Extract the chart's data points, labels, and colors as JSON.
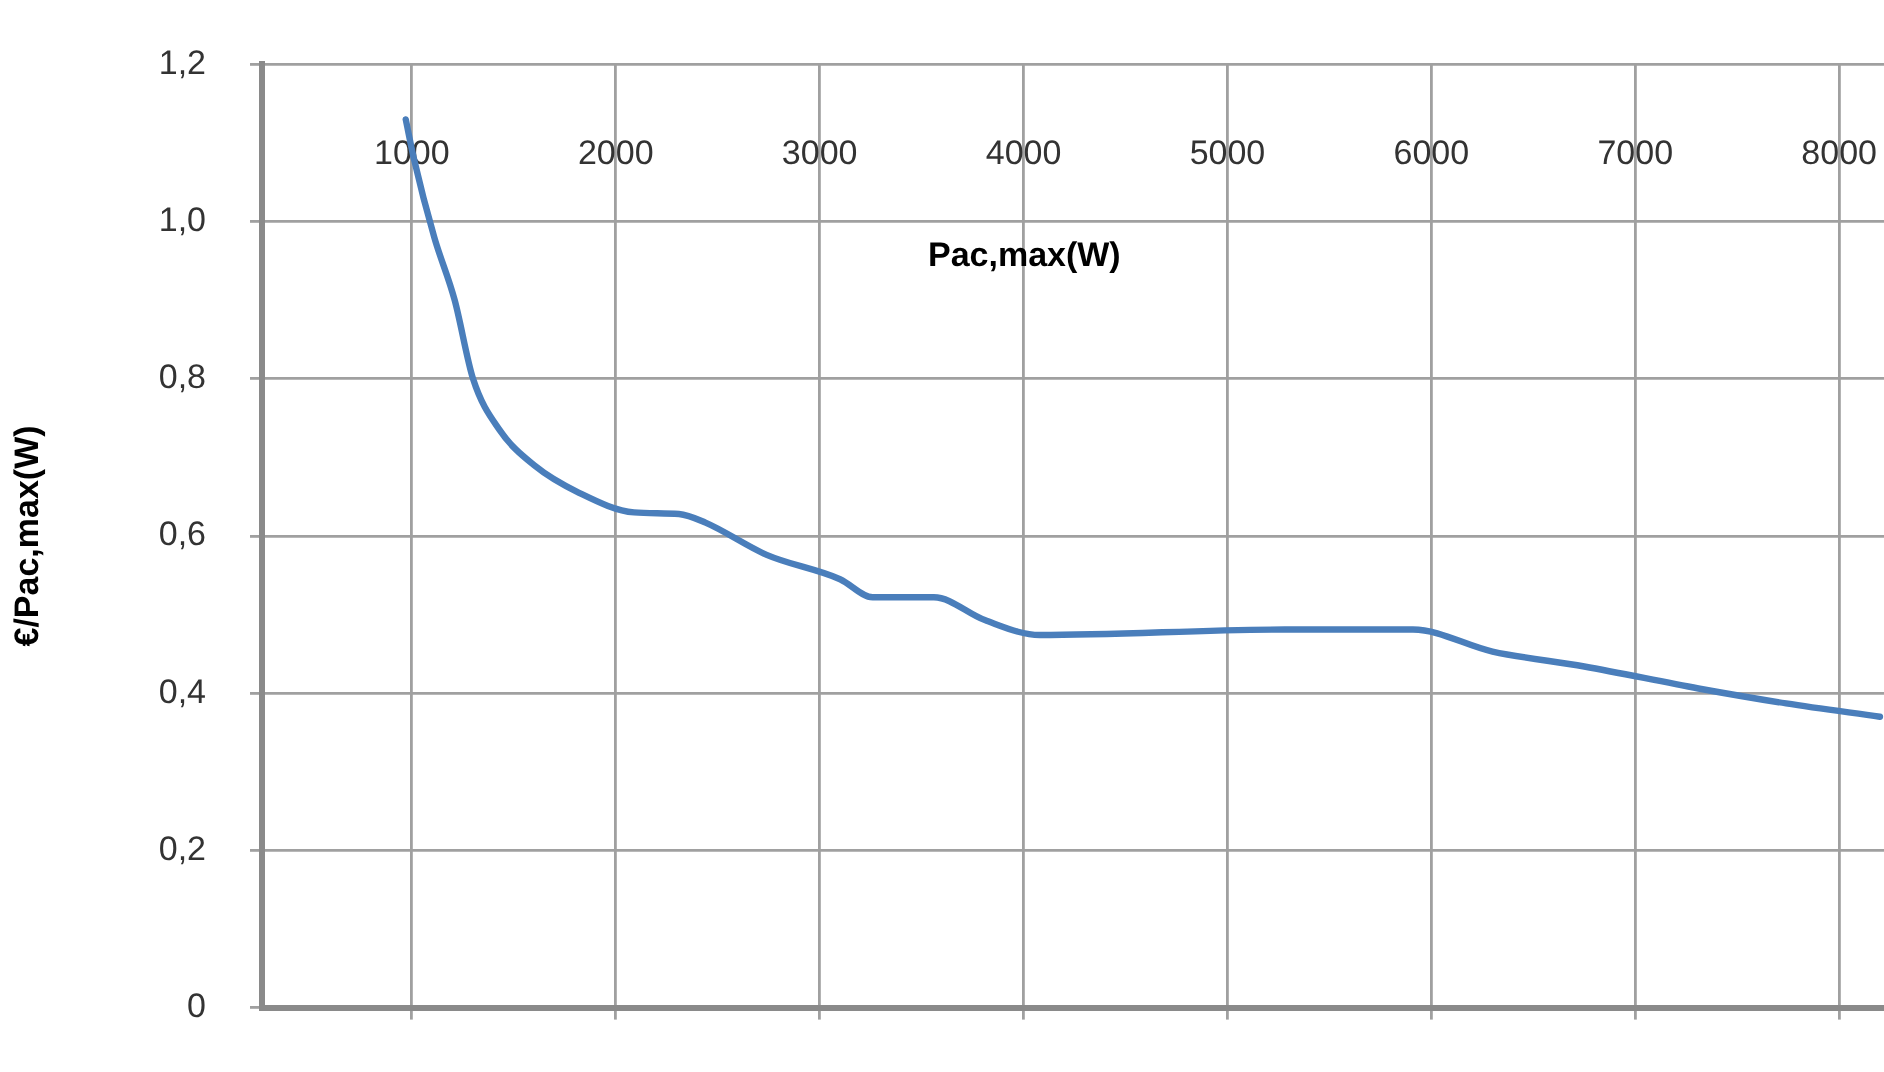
{
  "chart_data": {
    "type": "line",
    "xlabel": "Pac,max(W)",
    "ylabel": "€/Pac,max(W)",
    "x": [
      970,
      1010,
      1110,
      1210,
      1300,
      1430,
      1600,
      1820,
      2090,
      2310,
      2440,
      2740,
      3100,
      3260,
      3560,
      3810,
      4080,
      5280,
      5910,
      6300,
      6750,
      7310,
      7740,
      8200
    ],
    "series": [
      {
        "color": "#4a7ebb",
        "values": [
          1.13,
          1.08,
          0.98,
          0.9,
          0.8,
          0.735,
          0.69,
          0.655,
          0.63,
          0.628,
          0.617,
          0.576,
          0.545,
          0.522,
          0.522,
          0.493,
          0.474,
          0.481,
          0.481,
          0.453,
          0.434,
          0.406,
          0.387,
          0.37
        ]
      }
    ],
    "xlim": [
      265,
      8220
    ],
    "xticks": [
      1000,
      2000,
      3000,
      4000,
      5000,
      6000,
      7000,
      8000
    ],
    "ylim": [
      0,
      1.2
    ],
    "yticks": [
      0,
      {
        "value": 0.2,
        "label": "0,2"
      },
      {
        "value": 0.4,
        "label": "0,4"
      },
      {
        "value": 0.6,
        "label": "0,6"
      },
      {
        "value": 0.8,
        "label": "0,8"
      },
      {
        "value": 1.0,
        "label": "1,0"
      },
      {
        "value": 1.2,
        "label": "1,2"
      }
    ],
    "grid": true,
    "legend": false,
    "marker": "none",
    "line_style": "solid"
  }
}
